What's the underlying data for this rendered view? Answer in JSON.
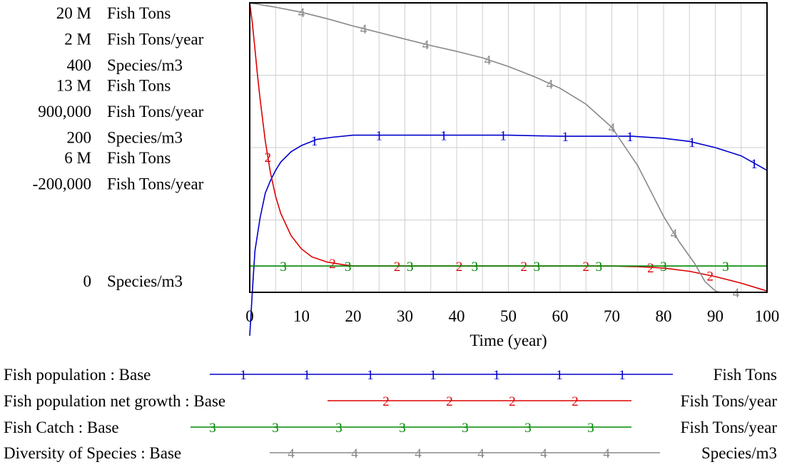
{
  "chart_data": {
    "type": "line",
    "x_axis": {
      "label": "Time (year)",
      "range": [
        0,
        100
      ],
      "ticks": [
        0,
        10,
        20,
        30,
        40,
        50,
        60,
        70,
        80,
        90,
        100
      ]
    },
    "y_scale_blocks": [
      {
        "rows": [
          {
            "value": "20 M",
            "unit": "Fish Tons"
          },
          {
            "value": "2 M",
            "unit": "Fish Tons/year"
          },
          {
            "value": "400",
            "unit": "Species/m3"
          }
        ]
      },
      {
        "rows": [
          {
            "value": "13 M",
            "unit": "Fish Tons"
          },
          {
            "value": "900,000",
            "unit": "Fish Tons/year"
          },
          {
            "value": "200",
            "unit": "Species/m3"
          }
        ]
      },
      {
        "rows": [
          {
            "value": "6 M",
            "unit": "Fish Tons"
          },
          {
            "value": "-200,000",
            "unit": "Fish Tons/year"
          },
          {
            "value": "0",
            "unit": "Species/m3"
          }
        ]
      }
    ],
    "grid": true,
    "legend_placement": "bottom",
    "series": [
      {
        "number": "1",
        "name": "Fish population : Base",
        "unit": "Fish Tons",
        "color": "#0000cc",
        "y_range": [
          6000000,
          20000000
        ],
        "x": [
          0,
          0.5,
          1,
          2,
          3,
          4,
          5,
          6,
          8,
          10,
          13,
          16,
          20,
          25,
          30,
          40,
          50,
          60,
          70,
          74,
          80,
          85,
          90,
          95,
          100
        ],
        "y": [
          3900000,
          6000000,
          8000000,
          9600000,
          10800000,
          11400000,
          11900000,
          12300000,
          12800000,
          13100000,
          13400000,
          13500000,
          13600000,
          13600000,
          13600000,
          13600000,
          13600000,
          13550000,
          13550000,
          13550000,
          13450000,
          13300000,
          13000000,
          12600000,
          11900000
        ],
        "markers_x": [
          12.5,
          25,
          37.5,
          49,
          61,
          73.5,
          85.5,
          97.5
        ]
      },
      {
        "number": "2",
        "name": "Fish population net growth : Base",
        "unit": "Fish Tons/year",
        "color": "#dd0000",
        "y_range": [
          -200000,
          2000000
        ],
        "x": [
          0,
          0.5,
          1,
          1.5,
          2,
          3,
          4,
          5,
          6,
          8,
          10,
          12,
          15,
          18,
          20,
          30,
          40,
          50,
          60,
          70,
          75,
          80,
          85,
          90,
          95,
          100
        ],
        "y": [
          2000000,
          1850000,
          1650000,
          1450000,
          1270000,
          950000,
          710000,
          530000,
          400000,
          230000,
          130000,
          70000,
          30000,
          10000,
          0,
          0,
          0,
          0,
          0,
          0,
          -5000,
          -15000,
          -40000,
          -80000,
          -130000,
          -190000
        ],
        "markers_x": [
          3.5,
          16,
          28.5,
          40.5,
          53,
          65,
          77.5,
          89
        ]
      },
      {
        "number": "3",
        "name": "Fish Catch : Base",
        "unit": "Fish Tons/year",
        "color": "#008800",
        "y_range": [
          -200000,
          2000000
        ],
        "x": [
          0,
          100
        ],
        "y": [
          0,
          0
        ],
        "markers_x": [
          6.5,
          19,
          31,
          43.5,
          55.5,
          67.5,
          80,
          92
        ]
      },
      {
        "number": "4",
        "name": "Diversity of Species : Base",
        "unit": "Species/m3",
        "color": "#888888",
        "y_range": [
          0,
          400
        ],
        "x": [
          0,
          5,
          10,
          15,
          20,
          25,
          30,
          35,
          40,
          45,
          50,
          55,
          60,
          65,
          70,
          75,
          80,
          83,
          86,
          88,
          90,
          91,
          100
        ],
        "y": [
          400,
          394,
          387,
          378,
          368,
          359,
          350,
          341,
          333,
          324,
          312,
          298,
          282,
          260,
          228,
          175,
          105,
          70,
          40,
          15,
          2,
          0,
          0
        ],
        "markers_x": [
          10,
          22,
          34,
          46,
          58,
          70,
          82,
          94
        ]
      }
    ]
  }
}
